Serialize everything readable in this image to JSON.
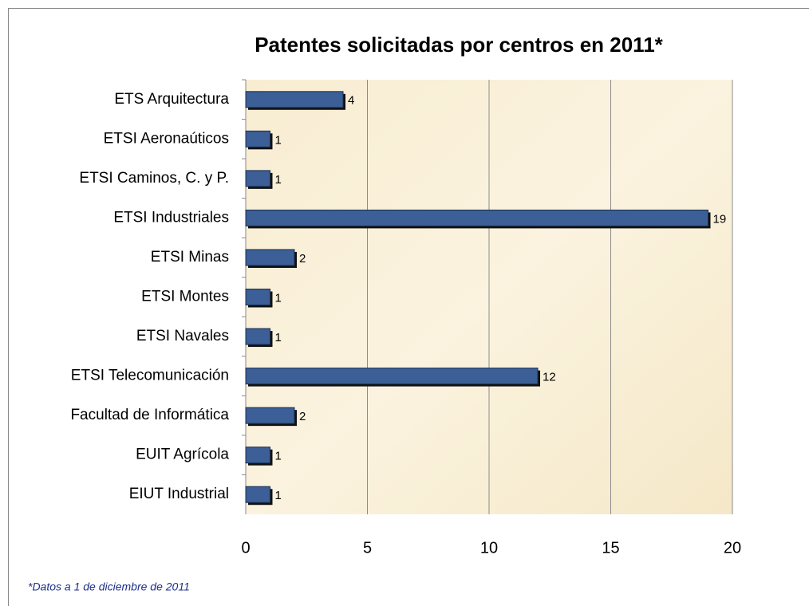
{
  "chart_data": {
    "type": "bar",
    "orientation": "horizontal",
    "title": "Patentes solicitadas por centros en 2011*",
    "categories": [
      "ETS Arquitectura",
      "ETSI Aeronaúticos",
      "ETSI Caminos, C. y P.",
      "ETSI Industriales",
      "ETSI Minas",
      "ETSI Montes",
      "ETSI Navales",
      "ETSI Telecomunicación",
      "Facultad de Informática",
      "EUIT Agrícola",
      "EIUT Industrial"
    ],
    "values": [
      4,
      1,
      1,
      19,
      2,
      1,
      1,
      12,
      2,
      1,
      1
    ],
    "color": "#3b5f96",
    "xlim": [
      0,
      20
    ],
    "xticks": [
      0,
      5,
      10,
      15,
      20
    ],
    "grid": true,
    "footnote": "*Datos a 1 de diciembre de 2011"
  }
}
